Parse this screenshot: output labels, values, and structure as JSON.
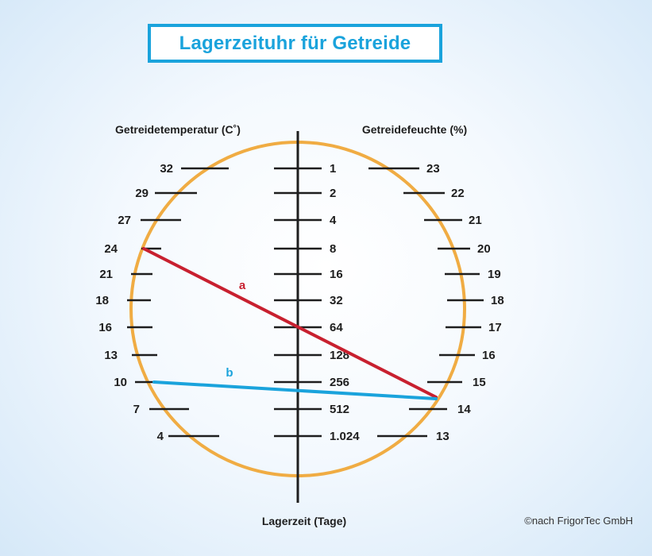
{
  "title": "Lagerzeituhr für Getreide",
  "scales": {
    "temperature": {
      "title": "Getreidetemperatur (C˚)",
      "ticks": [
        "32",
        "29",
        "27",
        "24",
        "21",
        "18",
        "16",
        "13",
        "10",
        "7",
        "4"
      ]
    },
    "storage_time": {
      "title": "Lagerzeit (Tage)",
      "ticks": [
        "1",
        "2",
        "4",
        "8",
        "16",
        "32",
        "64",
        "128",
        "256",
        "512",
        "1.024"
      ]
    },
    "moisture": {
      "title": "Getreidefeuchte (%)",
      "ticks": [
        "23",
        "22",
        "21",
        "20",
        "19",
        "18",
        "17",
        "16",
        "15",
        "14",
        "13"
      ]
    }
  },
  "lines": [
    {
      "label": "a",
      "color": "#c8202f",
      "from_temperature": "24",
      "to_moisture": "14",
      "storage_time": "64"
    },
    {
      "label": "b",
      "color": "#1aa3dc",
      "from_temperature": "10",
      "to_moisture": "14",
      "storage_time": "256"
    }
  ],
  "colors": {
    "circle": "#f0ac43",
    "axis": "#1e1e1e",
    "title": "#1aa3dc"
  },
  "copyright": "©nach FrigorTec GmbH"
}
